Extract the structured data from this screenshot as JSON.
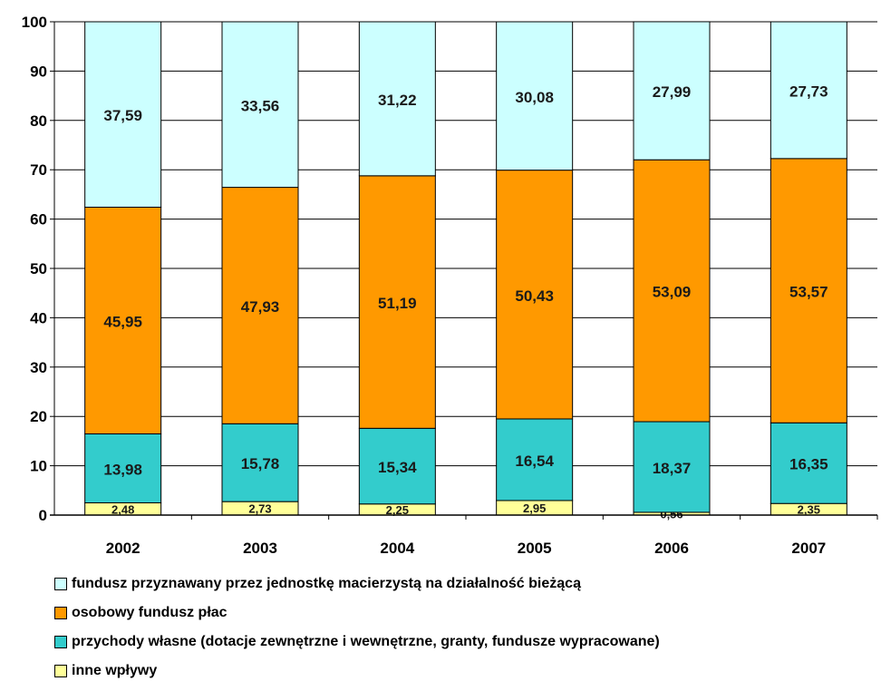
{
  "chart_data": {
    "type": "bar",
    "stacked": true,
    "categories": [
      "2002",
      "2003",
      "2004",
      "2005",
      "2006",
      "2007"
    ],
    "ylim": [
      0,
      100
    ],
    "yticks": [
      0,
      10,
      20,
      30,
      40,
      50,
      60,
      70,
      80,
      90,
      100
    ],
    "grid": true,
    "legend_position": "bottom",
    "series": [
      {
        "name": "inne wpływy",
        "color": "#ffff99",
        "values": [
          2.48,
          2.73,
          2.25,
          2.95,
          0.56,
          2.35
        ],
        "labels": [
          "2,48",
          "2,73",
          "2,25",
          "2,95",
          "0,56",
          "2,35"
        ]
      },
      {
        "name": "przychody własne (dotacje zewnętrzne i wewnętrzne, granty, fundusze wypracowane)",
        "color": "#33cccc",
        "values": [
          13.98,
          15.78,
          15.34,
          16.54,
          18.37,
          16.35
        ],
        "labels": [
          "13,98",
          "15,78",
          "15,34",
          "16,54",
          "18,37",
          "16,35"
        ]
      },
      {
        "name": "osobowy fundusz płac",
        "color": "#ff9900",
        "values": [
          45.95,
          47.93,
          51.19,
          50.43,
          53.09,
          53.57
        ],
        "labels": [
          "45,95",
          "47,93",
          "51,19",
          "50,43",
          "53,09",
          "53,57"
        ]
      },
      {
        "name": "fundusz przyznawany przez jednostkę macierzystą na działalność bieżącą",
        "color": "#ccffff",
        "values": [
          37.59,
          33.56,
          31.22,
          30.08,
          27.99,
          27.73
        ],
        "labels": [
          "37,59",
          "33,56",
          "31,22",
          "30,08",
          "27,99",
          "27,73"
        ]
      }
    ],
    "legend_order": [
      3,
      2,
      1,
      0
    ]
  }
}
